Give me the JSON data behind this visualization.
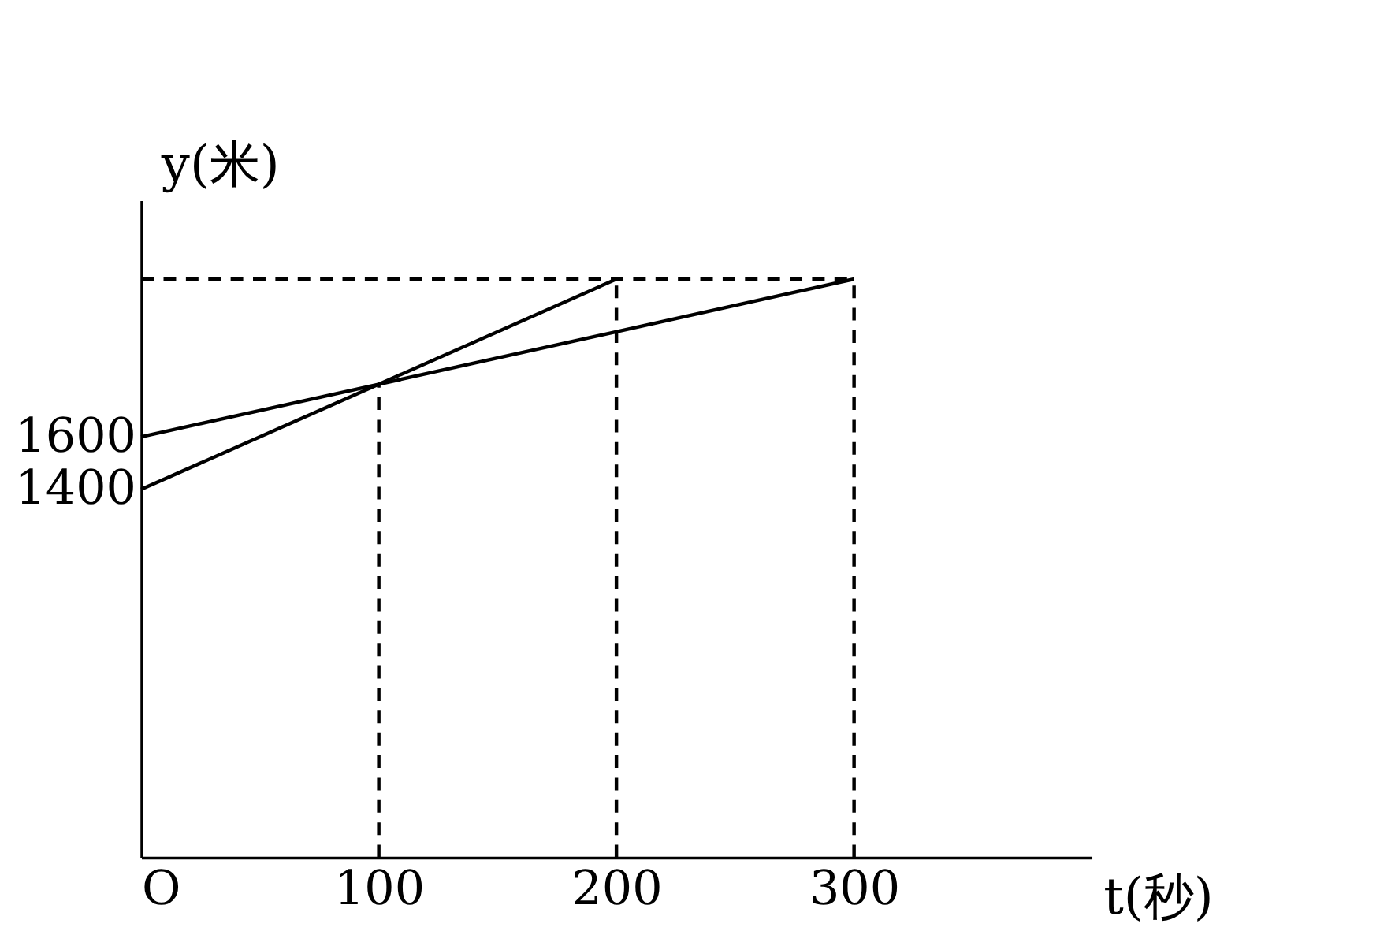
{
  "chart_data": {
    "type": "line",
    "xlabel": "t(秒)",
    "ylabel": "y(米)",
    "xlim": [
      0,
      400
    ],
    "ylim": [
      0,
      2500
    ],
    "xticks": [
      {
        "value": 0,
        "label": "O"
      },
      100,
      200,
      300
    ],
    "yticks": [
      1400,
      1600
    ],
    "grid": false,
    "marker": "none",
    "series": [
      {
        "x": [
          0,
          300
        ],
        "values": [
          1600,
          2200
        ],
        "color": "#000000",
        "line_style": "solid"
      },
      {
        "x": [
          0,
          200
        ],
        "values": [
          1400,
          2200
        ],
        "color": "#000000",
        "line_style": "solid"
      },
      {
        "x": [
          0,
          300
        ],
        "values": [
          2200,
          2200
        ],
        "color": "#000000",
        "line_style": "dashed"
      },
      {
        "x": [
          100,
          100
        ],
        "values": [
          0,
          1800
        ],
        "color": "#000000",
        "line_style": "dashed"
      },
      {
        "x": [
          200,
          200
        ],
        "values": [
          0,
          2200
        ],
        "color": "#000000",
        "line_style": "dashed"
      },
      {
        "x": [
          300,
          300
        ],
        "values": [
          0,
          2200
        ],
        "color": "#000000",
        "line_style": "dashed"
      }
    ]
  }
}
